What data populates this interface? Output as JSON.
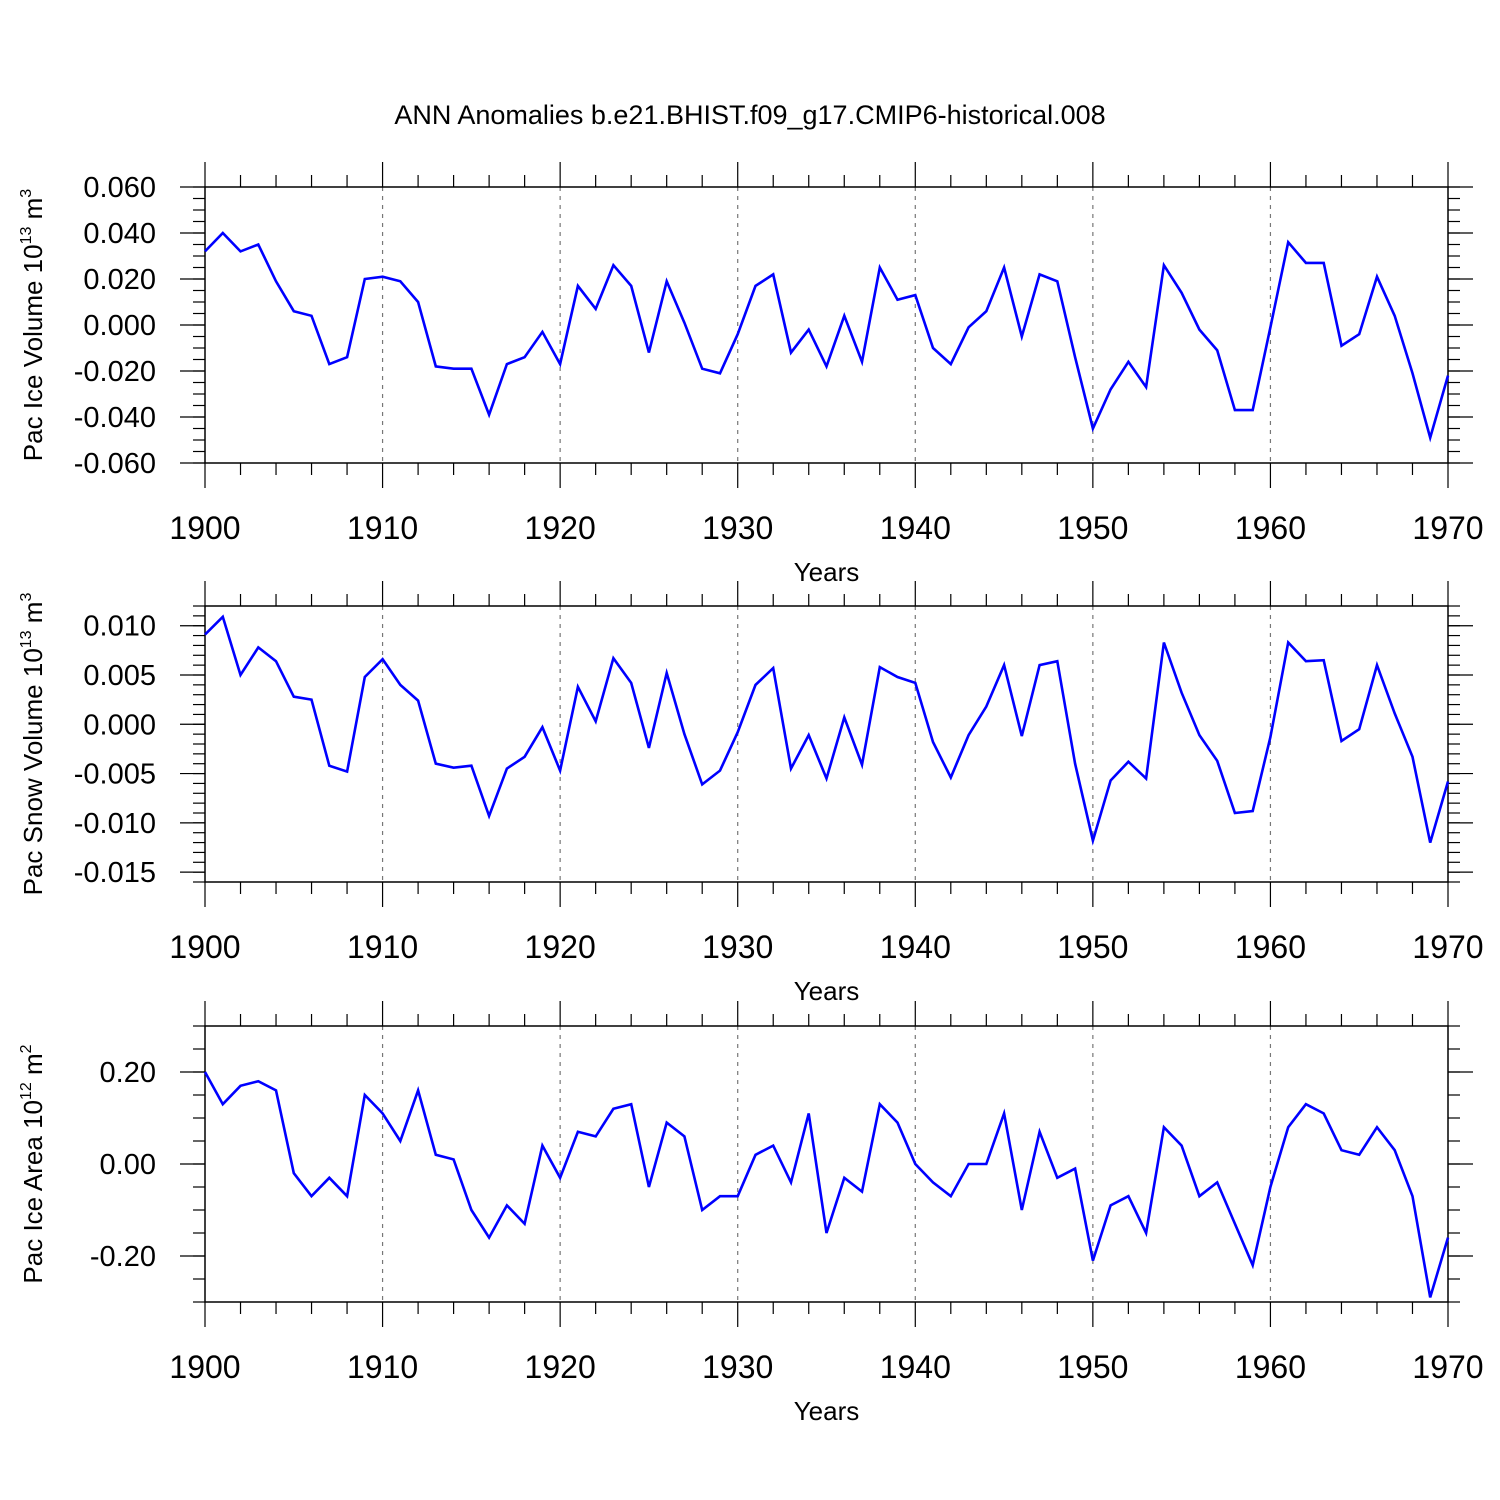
{
  "title": "ANN Anomalies b.e21.BHIST.f09_g17.CMIP6-historical.008",
  "line_color": "#0000ff",
  "chart_data": [
    {
      "type": "line",
      "ylabel": {
        "prefix": "Pac Ice Volume 10",
        "exp": "13",
        "unit": " m",
        "unit_exp": "3"
      },
      "xlabel": "Years",
      "xlim": [
        1900,
        1970
      ],
      "ylim": [
        -0.06,
        0.06
      ],
      "x_ticks": [
        "1900",
        "1910",
        "1920",
        "1930",
        "1940",
        "1950",
        "1960",
        "1970"
      ],
      "y_ticks": [
        "0.060",
        "0.040",
        "0.020",
        "0.000",
        "-0.020",
        "-0.040",
        "-0.060"
      ],
      "grid": "dashed vertical at major x ticks",
      "x": [
        1900,
        1901,
        1902,
        1903,
        1904,
        1905,
        1906,
        1907,
        1908,
        1909,
        1910,
        1911,
        1912,
        1913,
        1914,
        1915,
        1916,
        1917,
        1918,
        1919,
        1920,
        1921,
        1922,
        1923,
        1924,
        1925,
        1926,
        1927,
        1928,
        1929,
        1930,
        1931,
        1932,
        1933,
        1934,
        1935,
        1936,
        1937,
        1938,
        1939,
        1940,
        1941,
        1942,
        1943,
        1944,
        1945,
        1946,
        1947,
        1948,
        1949,
        1950,
        1951,
        1952,
        1953,
        1954,
        1955,
        1956,
        1957,
        1958,
        1959,
        1960,
        1961,
        1962,
        1963,
        1964,
        1965,
        1966,
        1967,
        1968,
        1969,
        1970
      ],
      "values": [
        0.032,
        0.04,
        0.032,
        0.035,
        0.019,
        0.006,
        0.004,
        -0.017,
        -0.014,
        0.02,
        0.021,
        0.019,
        0.01,
        -0.018,
        -0.019,
        -0.019,
        -0.039,
        -0.017,
        -0.014,
        -0.003,
        -0.017,
        0.017,
        0.007,
        0.026,
        0.017,
        -0.012,
        0.019,
        0.001,
        -0.019,
        -0.021,
        -0.004,
        0.017,
        0.022,
        -0.012,
        -0.002,
        -0.018,
        0.004,
        -0.016,
        0.025,
        0.011,
        0.013,
        -0.01,
        -0.017,
        -0.001,
        0.006,
        0.025,
        -0.005,
        0.022,
        0.019,
        -0.014,
        -0.045,
        -0.028,
        -0.016,
        -0.027,
        0.026,
        0.014,
        -0.002,
        -0.011,
        -0.037,
        -0.037,
        -0.001,
        0.036,
        0.027,
        0.027,
        -0.009,
        -0.004,
        0.021,
        0.004,
        -0.021,
        -0.049,
        -0.022
      ]
    },
    {
      "type": "line",
      "ylabel": {
        "prefix": "Pac Snow Volume 10",
        "exp": "13",
        "unit": " m",
        "unit_exp": "3"
      },
      "xlabel": "Years",
      "xlim": [
        1900,
        1970
      ],
      "ylim": [
        -0.016,
        0.012
      ],
      "x_ticks": [
        "1900",
        "1910",
        "1920",
        "1930",
        "1940",
        "1950",
        "1960",
        "1970"
      ],
      "y_ticks": [
        "0.010",
        "0.005",
        "0.000",
        "-0.005",
        "-0.010",
        "-0.015"
      ],
      "grid": "dashed vertical at major x ticks",
      "x": [
        1900,
        1901,
        1902,
        1903,
        1904,
        1905,
        1906,
        1907,
        1908,
        1909,
        1910,
        1911,
        1912,
        1913,
        1914,
        1915,
        1916,
        1917,
        1918,
        1919,
        1920,
        1921,
        1922,
        1923,
        1924,
        1925,
        1926,
        1927,
        1928,
        1929,
        1930,
        1931,
        1932,
        1933,
        1934,
        1935,
        1936,
        1937,
        1938,
        1939,
        1940,
        1941,
        1942,
        1943,
        1944,
        1945,
        1946,
        1947,
        1948,
        1949,
        1950,
        1951,
        1952,
        1953,
        1954,
        1955,
        1956,
        1957,
        1958,
        1959,
        1960,
        1961,
        1962,
        1963,
        1964,
        1965,
        1966,
        1967,
        1968,
        1969,
        1970
      ],
      "values": [
        0.0091,
        0.0109,
        0.005,
        0.0078,
        0.0064,
        0.0028,
        0.0025,
        -0.0042,
        -0.0048,
        0.0048,
        0.0066,
        0.004,
        0.0024,
        -0.004,
        -0.0044,
        -0.0042,
        -0.0093,
        -0.0045,
        -0.0033,
        -0.0003,
        -0.0047,
        0.0038,
        0.0003,
        0.0067,
        0.0042,
        -0.0024,
        0.0052,
        -0.001,
        -0.0061,
        -0.0047,
        -0.0008,
        0.004,
        0.0057,
        -0.0045,
        -0.0011,
        -0.0055,
        0.0007,
        -0.0041,
        0.0058,
        0.0048,
        0.0042,
        -0.0018,
        -0.0054,
        -0.0011,
        0.0018,
        0.006,
        -0.0012,
        0.006,
        0.0064,
        -0.004,
        -0.0118,
        -0.0057,
        -0.0038,
        -0.0055,
        0.0083,
        0.0032,
        -0.0011,
        -0.0037,
        -0.009,
        -0.0088,
        -0.0013,
        0.0083,
        0.0064,
        0.0065,
        -0.0017,
        -0.0005,
        0.006,
        0.0011,
        -0.0033,
        -0.012,
        -0.0058
      ]
    },
    {
      "type": "line",
      "ylabel": {
        "prefix": "Pac Ice Area 10",
        "exp": "12",
        "unit": " m",
        "unit_exp": "2"
      },
      "xlabel": "Years",
      "xlim": [
        1900,
        1970
      ],
      "ylim": [
        -0.3,
        0.3
      ],
      "x_ticks": [
        "1900",
        "1910",
        "1920",
        "1930",
        "1940",
        "1950",
        "1960",
        "1970"
      ],
      "y_ticks": [
        "0.20",
        "0.00",
        "-0.20"
      ],
      "grid": "dashed vertical at major x ticks",
      "x": [
        1900,
        1901,
        1902,
        1903,
        1904,
        1905,
        1906,
        1907,
        1908,
        1909,
        1910,
        1911,
        1912,
        1913,
        1914,
        1915,
        1916,
        1917,
        1918,
        1919,
        1920,
        1921,
        1922,
        1923,
        1924,
        1925,
        1926,
        1927,
        1928,
        1929,
        1930,
        1931,
        1932,
        1933,
        1934,
        1935,
        1936,
        1937,
        1938,
        1939,
        1940,
        1941,
        1942,
        1943,
        1944,
        1945,
        1946,
        1947,
        1948,
        1949,
        1950,
        1951,
        1952,
        1953,
        1954,
        1955,
        1956,
        1957,
        1958,
        1959,
        1960,
        1961,
        1962,
        1963,
        1964,
        1965,
        1966,
        1967,
        1968,
        1969,
        1970
      ],
      "values": [
        0.2,
        0.13,
        0.17,
        0.18,
        0.16,
        -0.02,
        -0.07,
        -0.03,
        -0.07,
        0.15,
        0.11,
        0.05,
        0.16,
        0.02,
        0.01,
        -0.1,
        -0.16,
        -0.09,
        -0.13,
        0.04,
        -0.03,
        0.07,
        0.06,
        0.12,
        0.13,
        -0.05,
        0.09,
        0.06,
        -0.1,
        -0.07,
        -0.07,
        0.02,
        0.04,
        -0.04,
        0.11,
        -0.15,
        -0.03,
        -0.06,
        0.13,
        0.09,
        0.0,
        -0.04,
        -0.07,
        0.0,
        0.0,
        0.11,
        -0.1,
        0.07,
        -0.03,
        -0.01,
        -0.21,
        -0.09,
        -0.07,
        -0.15,
        0.08,
        0.04,
        -0.07,
        -0.04,
        -0.13,
        -0.22,
        -0.05,
        0.08,
        0.13,
        0.11,
        0.03,
        0.02,
        0.08,
        0.03,
        -0.07,
        -0.29,
        -0.16
      ]
    }
  ]
}
